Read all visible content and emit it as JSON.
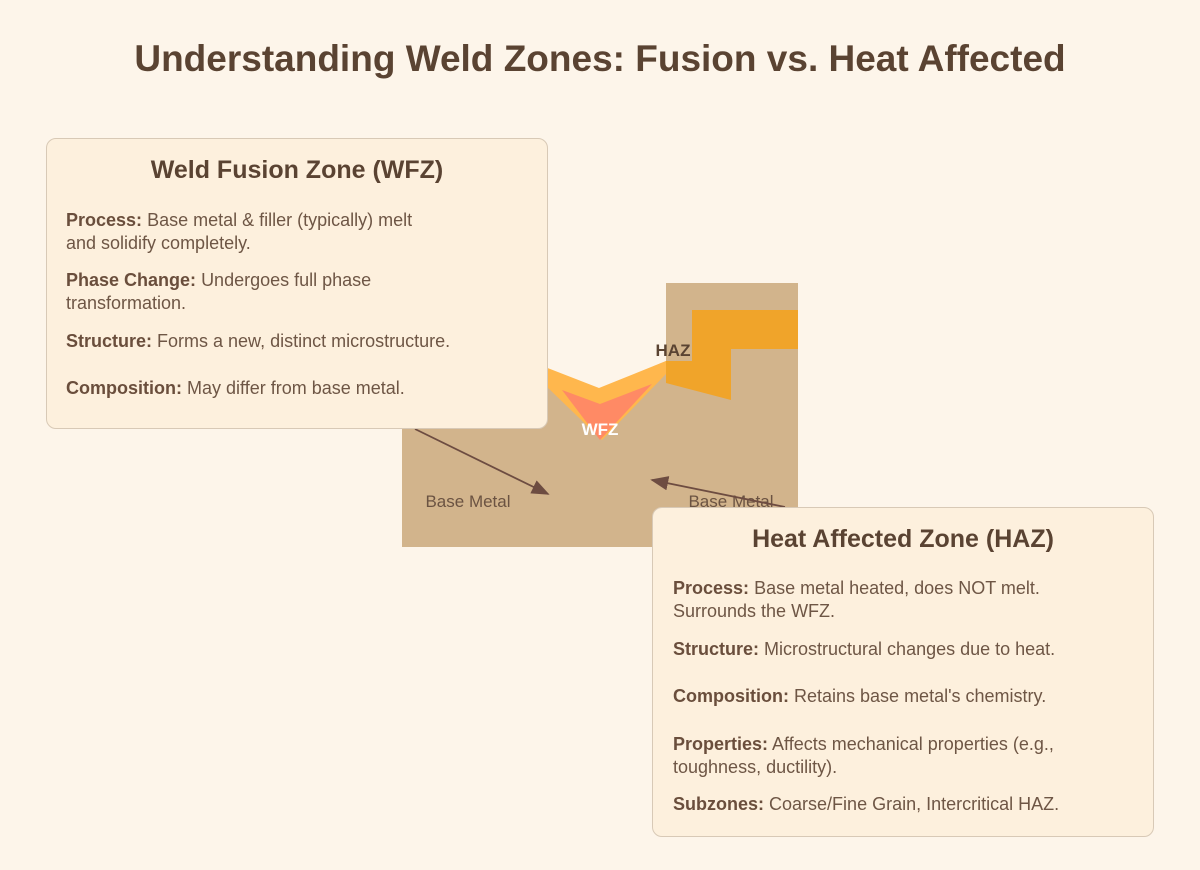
{
  "title": "Understanding Weld Zones: Fusion vs. Heat Affected",
  "diagram": {
    "label_haz": "HAZ",
    "label_wfz": "WFZ",
    "label_base_left": "Base Metal",
    "label_base_right": "Base Metal",
    "colors": {
      "base_metal": "#d2b48c",
      "haz": "#f0a42a",
      "wfz_outer": "#ffb74d",
      "wfz_inner": "#ff8a65",
      "arrow": "#6d4c41"
    }
  },
  "wfz_card": {
    "heading": "Weld Fusion Zone (WFZ)",
    "items": [
      {
        "label": "Process:",
        "text": "Base metal & filler (typically) melt",
        "text2": "and solidify completely."
      },
      {
        "label": "Phase Change:",
        "text": "Undergoes full phase",
        "text2": "transformation."
      },
      {
        "label": "Structure:",
        "text": "Forms a new, distinct microstructure."
      },
      {
        "label": "Composition:",
        "text": "May differ from base metal."
      }
    ]
  },
  "haz_card": {
    "heading": "Heat Affected Zone (HAZ)",
    "items": [
      {
        "label": "Process:",
        "text": "Base metal heated, does NOT melt.",
        "text2": "Surrounds the WFZ."
      },
      {
        "label": "Structure:",
        "text": "Microstructural changes due to heat."
      },
      {
        "label": "Composition:",
        "text": "Retains base metal's chemistry."
      },
      {
        "label": "Properties:",
        "text": "Affects mechanical properties (e.g.,",
        "text2": "toughness, ductility)."
      },
      {
        "label": "Subzones:",
        "text": "Coarse/Fine Grain, Intercritical HAZ."
      }
    ]
  }
}
